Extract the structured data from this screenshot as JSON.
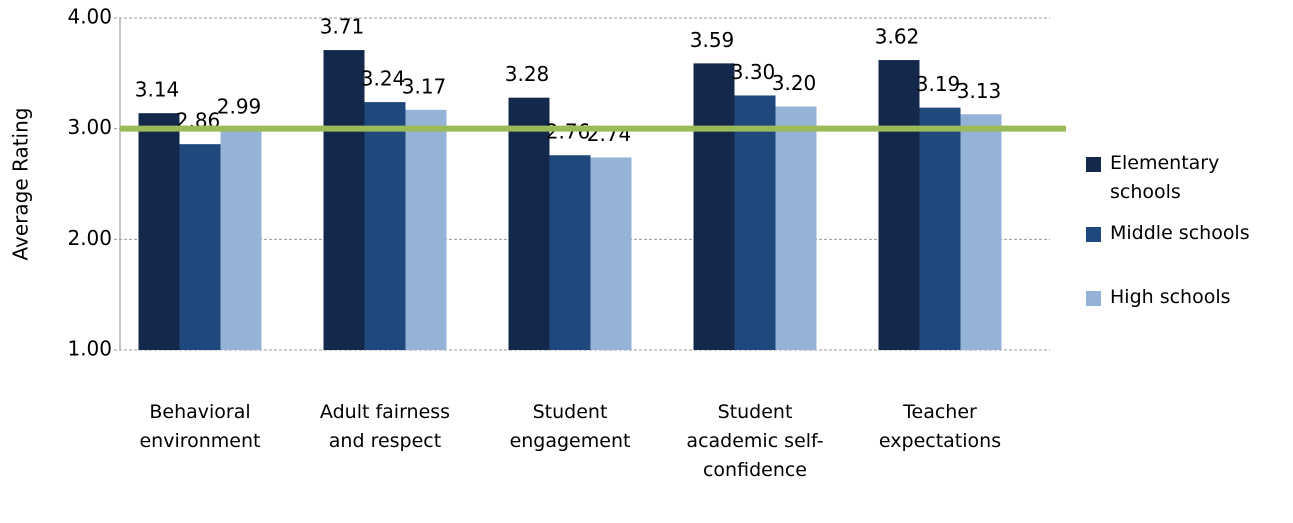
{
  "chart_data": {
    "type": "bar",
    "y_label": "Average Rating",
    "categories": [
      "Behavioral environment",
      "Adult fairness and respect",
      "Student engagement",
      "Student academic self-confidence",
      "Teacher expectations"
    ],
    "series": [
      {
        "name": "Elementary schools",
        "color": "#14284b",
        "values": [
          3.14,
          3.71,
          3.28,
          3.59,
          3.62
        ],
        "value_labels": [
          "3.14",
          "3.71",
          "3.28",
          "3.59",
          "3.62"
        ]
      },
      {
        "name": "Middle schools",
        "color": "#1f497d",
        "values": [
          2.86,
          3.24,
          2.76,
          3.3,
          3.19
        ],
        "value_labels": [
          "2.86",
          "3.24",
          "2.76",
          "3.30",
          "3.19"
        ]
      },
      {
        "name": "High schools",
        "color": "#95b3d7",
        "values": [
          2.99,
          3.17,
          2.74,
          3.2,
          3.13
        ],
        "value_labels": [
          "2.99",
          "3.17",
          "2.74",
          "3.20",
          "3.13"
        ]
      }
    ],
    "ylim": [
      1,
      4
    ],
    "yticks": [
      {
        "value": 1,
        "label": "1.00"
      },
      {
        "value": 2,
        "label": "2.00"
      },
      {
        "value": 3,
        "label": "3.00"
      },
      {
        "value": 4,
        "label": "4.00"
      }
    ],
    "grid": true,
    "reference_line": {
      "value": 3,
      "color": "#9bbb59"
    },
    "legend": "right"
  }
}
